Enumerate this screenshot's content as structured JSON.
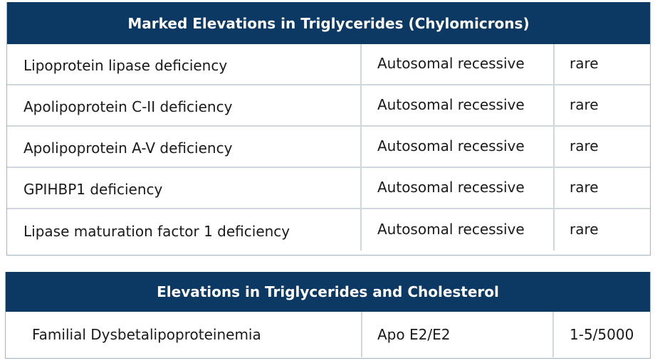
{
  "table1": {
    "title": "Marked Elevations in Triglycerides (Chylomicrons)",
    "rows": [
      {
        "condition": "Lipoprotein lipase deficiency",
        "inheritance": "Autosomal recessive",
        "prevalence": "rare"
      },
      {
        "condition": "Apolipoprotein C-II deficiency",
        "inheritance": "Autosomal recessive",
        "prevalence": "rare"
      },
      {
        "condition": "Apolipoprotein A-V deficiency",
        "inheritance": "Autosomal recessive",
        "prevalence": "rare"
      },
      {
        "condition": "GPIHBP1 deficiency",
        "inheritance": "Autosomal recessive",
        "prevalence": "rare"
      },
      {
        "condition": "Lipase maturation factor 1 deficiency",
        "inheritance": "Autosomal recessive",
        "prevalence": "rare"
      }
    ]
  },
  "table2": {
    "title": "Elevations in Triglycerides and Cholesterol",
    "rows": [
      {
        "condition": "Familial Dysbetalipoproteinemia",
        "inheritance": "Apo E2/E2",
        "prevalence": "1-5/5000"
      }
    ]
  }
}
